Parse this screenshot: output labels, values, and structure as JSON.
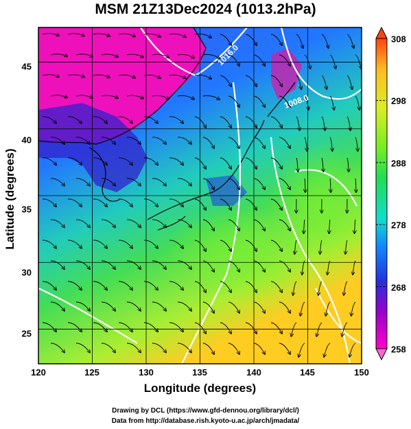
{
  "title": "MSM 21Z13Dec2024 (1013.2hPa)",
  "x_axis": {
    "label": "Longitude (degrees)",
    "ticks": [
      "120",
      "125",
      "130",
      "135",
      "140",
      "145",
      "150"
    ],
    "range": [
      120,
      150
    ]
  },
  "y_axis": {
    "label": "Latitude  (degrees)",
    "ticks": [
      "25",
      "30",
      "35",
      "40",
      "45"
    ],
    "range": [
      22.4,
      47.6
    ]
  },
  "colorbar": {
    "ticks": [
      "308",
      "298",
      "288",
      "278",
      "268",
      "258"
    ],
    "range": [
      258,
      308
    ]
  },
  "isobar_labels": [
    "1016.0",
    "1008.0"
  ],
  "credits": {
    "line1": "Drawing by DCL (https://www.gfd-dennou.org/library/dcl/)",
    "line2": "Data from http://database.rish.kyoto-u.ac.jp/arch/jmadata/"
  },
  "colors": {
    "cold": "#ff00cc",
    "mid": "#33dd44",
    "warm": "#ffdd22",
    "hot": "#ff3300",
    "isobar": "#ffffff",
    "streamline": "#000000"
  }
}
